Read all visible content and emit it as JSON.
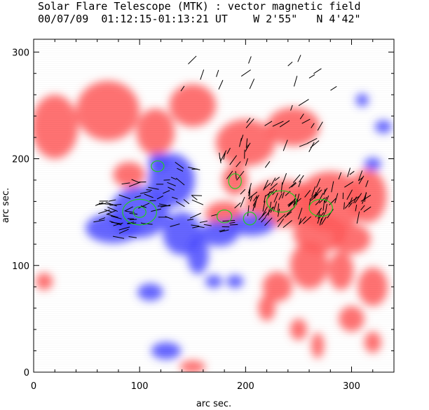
{
  "title": "Solar Flare Telescope (MTK) : vector magnetic field",
  "subtitle_date": "00/07/09",
  "subtitle_time": "01:12:15-01:13:21 UT",
  "subtitle_pos_w": "W 2'55\"",
  "subtitle_pos_n": "N 4'42\"",
  "chart_data": {
    "type": "heatmap",
    "xlabel": "arc sec.",
    "ylabel": "arc sec.",
    "xlim": [
      0,
      340
    ],
    "ylim": [
      0,
      312
    ],
    "x_ticks": [
      0,
      100,
      200,
      300
    ],
    "y_ticks": [
      0,
      100,
      200,
      300
    ],
    "colors": {
      "positive_polarity": "#ff5a5a",
      "negative_polarity": "#4a4aff",
      "contour": "#22cc22",
      "transverse_vectors": "#000000"
    },
    "regions": [
      {
        "polarity": "positive",
        "cx": 20,
        "cy": 230,
        "rx": 22,
        "ry": 30
      },
      {
        "polarity": "positive",
        "cx": 70,
        "cy": 245,
        "rx": 30,
        "ry": 28
      },
      {
        "polarity": "positive",
        "cx": 115,
        "cy": 225,
        "rx": 18,
        "ry": 22
      },
      {
        "polarity": "positive",
        "cx": 150,
        "cy": 250,
        "rx": 22,
        "ry": 20
      },
      {
        "polarity": "positive",
        "cx": 90,
        "cy": 185,
        "rx": 15,
        "ry": 12
      },
      {
        "polarity": "positive",
        "cx": 200,
        "cy": 215,
        "rx": 28,
        "ry": 22
      },
      {
        "polarity": "positive",
        "cx": 245,
        "cy": 230,
        "rx": 25,
        "ry": 18
      },
      {
        "polarity": "positive",
        "cx": 190,
        "cy": 180,
        "rx": 12,
        "ry": 14
      },
      {
        "polarity": "positive",
        "cx": 180,
        "cy": 148,
        "rx": 18,
        "ry": 12
      },
      {
        "polarity": "positive",
        "cx": 235,
        "cy": 158,
        "rx": 35,
        "ry": 22
      },
      {
        "polarity": "positive",
        "cx": 280,
        "cy": 160,
        "rx": 32,
        "ry": 28
      },
      {
        "polarity": "positive",
        "cx": 315,
        "cy": 165,
        "rx": 18,
        "ry": 25
      },
      {
        "polarity": "positive",
        "cx": 270,
        "cy": 130,
        "rx": 25,
        "ry": 18
      },
      {
        "polarity": "positive",
        "cx": 300,
        "cy": 125,
        "rx": 18,
        "ry": 14
      },
      {
        "polarity": "positive",
        "cx": 260,
        "cy": 100,
        "rx": 18,
        "ry": 22
      },
      {
        "polarity": "positive",
        "cx": 290,
        "cy": 95,
        "rx": 12,
        "ry": 18
      },
      {
        "polarity": "positive",
        "cx": 230,
        "cy": 80,
        "rx": 14,
        "ry": 14
      },
      {
        "polarity": "positive",
        "cx": 220,
        "cy": 60,
        "rx": 8,
        "ry": 12
      },
      {
        "polarity": "positive",
        "cx": 320,
        "cy": 80,
        "rx": 14,
        "ry": 18
      },
      {
        "polarity": "positive",
        "cx": 300,
        "cy": 50,
        "rx": 12,
        "ry": 12
      },
      {
        "polarity": "positive",
        "cx": 250,
        "cy": 40,
        "rx": 8,
        "ry": 10
      },
      {
        "polarity": "positive",
        "cx": 268,
        "cy": 25,
        "rx": 6,
        "ry": 12
      },
      {
        "polarity": "positive",
        "cx": 320,
        "cy": 28,
        "rx": 8,
        "ry": 10
      },
      {
        "polarity": "positive",
        "cx": 150,
        "cy": 5,
        "rx": 12,
        "ry": 6
      },
      {
        "polarity": "positive",
        "cx": 10,
        "cy": 85,
        "rx": 8,
        "ry": 8
      },
      {
        "polarity": "negative",
        "cx": 100,
        "cy": 150,
        "rx": 28,
        "ry": 24
      },
      {
        "polarity": "negative",
        "cx": 75,
        "cy": 135,
        "rx": 26,
        "ry": 14
      },
      {
        "polarity": "negative",
        "cx": 130,
        "cy": 180,
        "rx": 22,
        "ry": 25
      },
      {
        "polarity": "negative",
        "cx": 140,
        "cy": 130,
        "rx": 18,
        "ry": 20
      },
      {
        "polarity": "negative",
        "cx": 155,
        "cy": 110,
        "rx": 10,
        "ry": 18
      },
      {
        "polarity": "negative",
        "cx": 175,
        "cy": 130,
        "rx": 18,
        "ry": 12
      },
      {
        "polarity": "negative",
        "cx": 205,
        "cy": 138,
        "rx": 22,
        "ry": 10
      },
      {
        "polarity": "negative",
        "cx": 118,
        "cy": 197,
        "rx": 10,
        "ry": 8
      },
      {
        "polarity": "negative",
        "cx": 110,
        "cy": 75,
        "rx": 12,
        "ry": 8
      },
      {
        "polarity": "negative",
        "cx": 125,
        "cy": 20,
        "rx": 14,
        "ry": 8
      },
      {
        "polarity": "negative",
        "cx": 170,
        "cy": 85,
        "rx": 8,
        "ry": 6
      },
      {
        "polarity": "negative",
        "cx": 190,
        "cy": 85,
        "rx": 8,
        "ry": 6
      },
      {
        "polarity": "negative",
        "cx": 320,
        "cy": 195,
        "rx": 8,
        "ry": 6
      },
      {
        "polarity": "negative",
        "cx": 330,
        "cy": 230,
        "rx": 8,
        "ry": 6
      },
      {
        "polarity": "negative",
        "cx": 310,
        "cy": 255,
        "rx": 6,
        "ry": 6
      }
    ],
    "contours": [
      {
        "cx": 100,
        "cy": 150,
        "rx": 16,
        "ry": 12
      },
      {
        "cx": 100,
        "cy": 150,
        "rx": 6,
        "ry": 5
      },
      {
        "cx": 117,
        "cy": 193,
        "rx": 6,
        "ry": 5
      },
      {
        "cx": 190,
        "cy": 179,
        "rx": 6,
        "ry": 7
      },
      {
        "cx": 180,
        "cy": 146,
        "rx": 7,
        "ry": 6
      },
      {
        "cx": 204,
        "cy": 144,
        "rx": 6,
        "ry": 6
      },
      {
        "cx": 234,
        "cy": 160,
        "rx": 14,
        "ry": 10
      },
      {
        "cx": 271,
        "cy": 154,
        "rx": 11,
        "ry": 8
      }
    ]
  }
}
